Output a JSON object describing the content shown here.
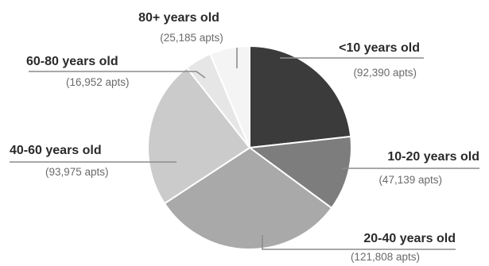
{
  "chart_data": {
    "type": "pie",
    "slices": [
      {
        "label": "<10 years old",
        "count_label": "(92,390 apts)",
        "value": 92390,
        "color": "#3b3b3b"
      },
      {
        "label": "10-20 years old",
        "count_label": "(47,139 apts)",
        "value": 47139,
        "color": "#7d7d7d"
      },
      {
        "label": "20-40 years old",
        "count_label": "(121,808 apts)",
        "value": 121808,
        "color": "#a9a9a9"
      },
      {
        "label": "40-60 years old",
        "count_label": "(93,975 apts)",
        "value": 93975,
        "color": "#cbcbcb"
      },
      {
        "label": "60-80 years old",
        "count_label": "(16,952 apts)",
        "value": 16952,
        "color": "#e6e6e6"
      },
      {
        "label": "80+ years old",
        "count_label": "(25,185 apts)",
        "value": 25185,
        "color": "#f4f4f4"
      }
    ],
    "start_angle": "12 o'clock",
    "direction": "clockwise",
    "legend": "callout labels with leader lines"
  }
}
